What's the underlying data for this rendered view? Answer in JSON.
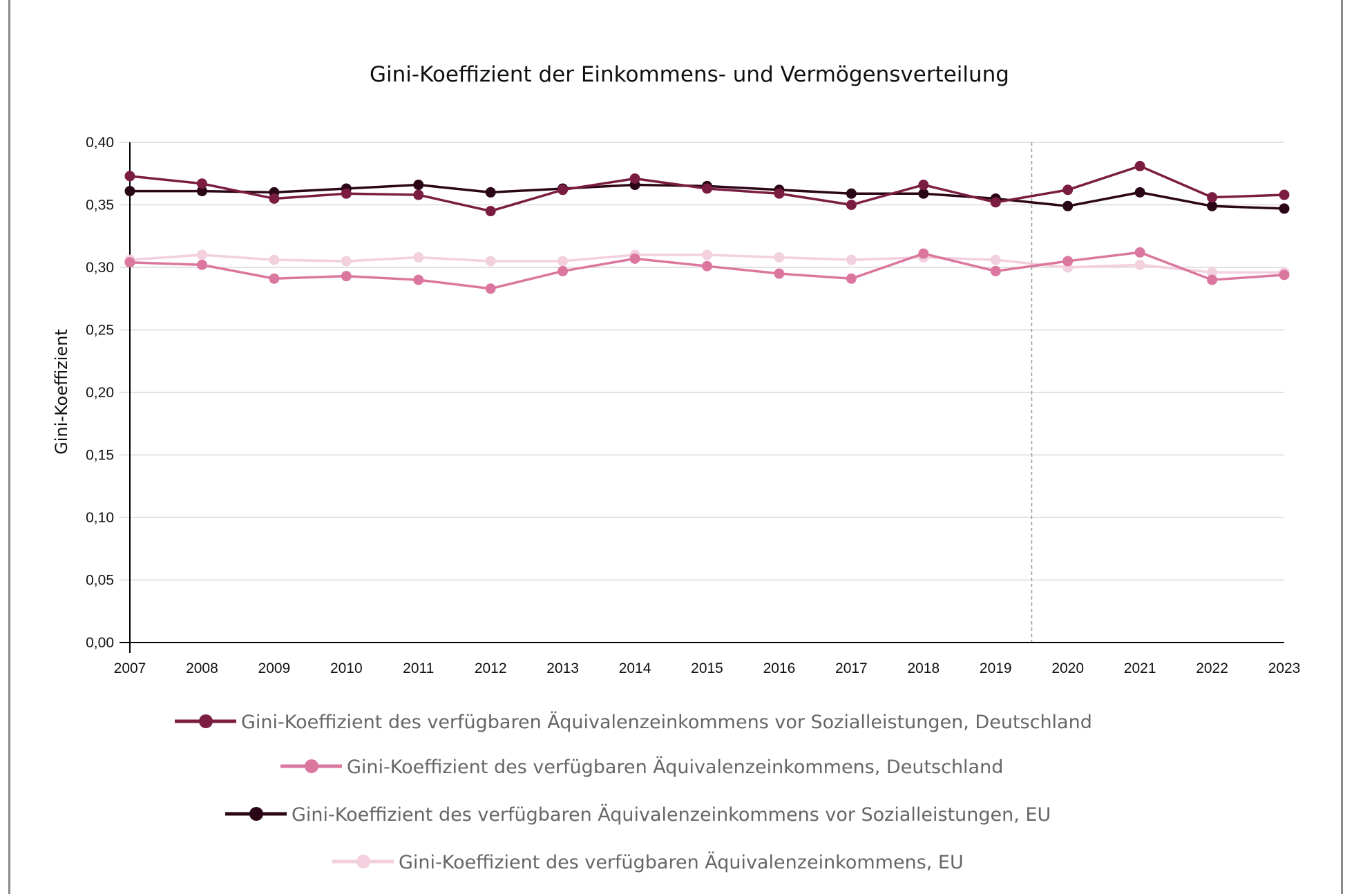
{
  "chart_data": {
    "type": "line",
    "title": "Gini-Koeffizient der Einkommens- und Vermögensverteilung",
    "xlabel": "",
    "ylabel": "Gini-Koeffizient",
    "x": [
      "2007",
      "2008",
      "2009",
      "2010",
      "2011",
      "2012",
      "2013",
      "2014",
      "2015",
      "2016",
      "2017",
      "2018",
      "2019",
      "2020",
      "2021",
      "2022",
      "2023"
    ],
    "ylim": [
      0,
      0.4
    ],
    "yticks": [
      0,
      0.05,
      0.1,
      0.15,
      0.2,
      0.25,
      0.3,
      0.35,
      0.4
    ],
    "ytick_labels": [
      "0,00",
      "0,05",
      "0,10",
      "0,15",
      "0,20",
      "0,25",
      "0,30",
      "0,35",
      "0,40"
    ],
    "grid": true,
    "legend_position": "bottom",
    "annotations": [
      {
        "type": "vertical-dashed-line",
        "between": [
          "2019",
          "2020"
        ]
      }
    ],
    "series": [
      {
        "name": "Gini-Koeffizient des verfügbaren Äquivalenzeinkommens vor Sozialleistungen, Deutschland",
        "color": "#7b1d41",
        "values": [
          0.373,
          0.367,
          0.355,
          0.359,
          0.358,
          0.345,
          0.362,
          0.371,
          0.363,
          0.359,
          0.35,
          0.366,
          0.352,
          0.362,
          0.381,
          0.356,
          0.358
        ]
      },
      {
        "name": "Gini-Koeffizient des verfügbaren Äquivalenzeinkommens, Deutschland",
        "color": "#db779e",
        "values": [
          0.304,
          0.302,
          0.291,
          0.293,
          0.29,
          0.283,
          0.297,
          0.307,
          0.301,
          0.295,
          0.291,
          0.311,
          0.297,
          0.305,
          0.312,
          0.29,
          0.294
        ]
      },
      {
        "name": "Gini-Koeffizient des verfügbaren Äquivalenzeinkommens vor Sozialleistungen, EU",
        "color": "#2a0616",
        "values": [
          0.361,
          0.361,
          0.36,
          0.363,
          0.366,
          0.36,
          0.363,
          0.366,
          0.365,
          0.362,
          0.359,
          0.359,
          0.355,
          0.349,
          0.36,
          0.349,
          0.347
        ]
      },
      {
        "name": "Gini-Koeffizient des verfügbaren Äquivalenzeinkommens, EU",
        "color": "#f2d0de",
        "values": [
          0.306,
          0.31,
          0.306,
          0.305,
          0.308,
          0.305,
          0.305,
          0.31,
          0.31,
          0.308,
          0.306,
          0.308,
          0.306,
          0.3,
          0.302,
          0.296,
          0.296
        ]
      }
    ]
  }
}
